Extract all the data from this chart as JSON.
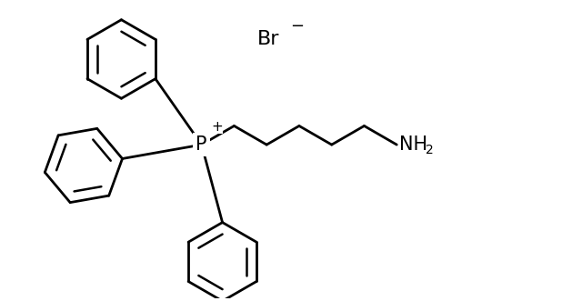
{
  "bg_color": "#ffffff",
  "line_color": "#000000",
  "line_width": 2.0,
  "fig_width": 6.4,
  "fig_height": 3.31,
  "dpi": 100,
  "P_label": "P",
  "P_charge": "+",
  "Br_label": "Br",
  "Br_charge": "−",
  "NH2_label": "NH",
  "NH2_sub": "2"
}
